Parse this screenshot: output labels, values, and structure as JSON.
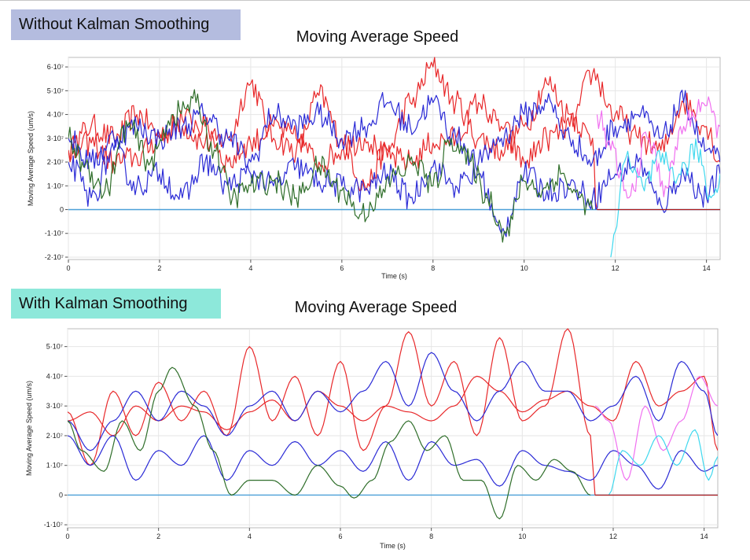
{
  "banners": {
    "top": "Without Kalman Smoothing",
    "bottom": "With Kalman Smoothing"
  },
  "colors": {
    "red": "#e8282a",
    "blue": "#2b2bd6",
    "green": "#2f6e2a",
    "magenta": "#f070f0",
    "cyan": "#3fd8ee",
    "darkred": "#b01818",
    "zero_line": "#4aa0d8",
    "grid": "#e6e6e6",
    "frame": "#bbbbbb"
  },
  "chart_data": [
    {
      "type": "line",
      "title": "Moving Average Speed",
      "xlabel": "Time (s)",
      "ylabel": "Moving Average Speed (um/s)",
      "xlim": [
        0,
        14.3
      ],
      "ylim": [
        -2.1,
        6.4
      ],
      "x_ticks": [
        0,
        2,
        4,
        6,
        8,
        10,
        12,
        14
      ],
      "x_tick_labels": [
        "0",
        "2",
        "4",
        "6",
        "8",
        "10",
        "12",
        "14"
      ],
      "y_ticks": [
        -2,
        -1,
        0,
        1,
        2,
        3,
        4,
        5,
        6
      ],
      "y_tick_labels": [
        "-2·10⁷",
        "-1·10⁷",
        "0",
        "1·10⁷",
        "2·10⁷",
        "3·10⁷",
        "4·10⁷",
        "5·10⁷",
        "6·10⁷"
      ],
      "y_unit": "×10^7 um/s",
      "grid": true,
      "noisy": true,
      "series": [
        {
          "color": "red",
          "x": [
            0,
            0.5,
            1.0,
            1.5,
            2.0,
            2.5,
            3.0,
            3.5,
            4.0,
            4.5,
            5.0,
            5.5,
            6.0,
            6.5,
            7.0,
            7.5,
            8.0,
            8.5,
            9.0,
            9.5,
            10.0,
            10.5,
            11.0,
            11.5,
            11.6
          ],
          "values": [
            2.5,
            3.5,
            3.0,
            4.0,
            3.2,
            3.5,
            2.8,
            3.0,
            5.3,
            3.0,
            2.5,
            4.8,
            3.0,
            1.0,
            2.5,
            4.5,
            6.0,
            4.5,
            3.0,
            2.5,
            3.5,
            5.3,
            4.0,
            3.0,
            0
          ]
        },
        {
          "color": "red",
          "x": [
            0,
            0.5,
            1.0,
            1.5,
            2.0,
            2.5,
            3.0,
            3.5,
            4.0,
            4.5,
            5.0,
            5.5,
            6.0,
            6.5,
            7.0,
            7.5,
            8.0,
            8.5,
            9.0,
            9.5,
            10.0,
            10.5,
            11.0,
            11.5,
            12.0,
            12.5,
            13.0,
            13.5,
            14.0,
            14.3
          ],
          "values": [
            2.5,
            2.8,
            2.0,
            2.2,
            3.0,
            3.8,
            3.5,
            2.0,
            2.8,
            3.5,
            3.0,
            2.0,
            2.5,
            3.0,
            2.2,
            2.0,
            2.8,
            3.0,
            4.5,
            3.5,
            2.0,
            3.0,
            3.5,
            5.7,
            4.0,
            3.0,
            2.5,
            4.5,
            3.5,
            2.0
          ]
        },
        {
          "color": "blue",
          "x": [
            0,
            0.5,
            1.0,
            1.5,
            2.0,
            2.5,
            3.0,
            3.5,
            4.0,
            4.5,
            5.0,
            5.5,
            6.0,
            6.5,
            7.0,
            7.5,
            8.0,
            8.5,
            9.0,
            9.5,
            10.0,
            10.5,
            11.0,
            11.5,
            12.0,
            12.5,
            13.0,
            13.5,
            14.0,
            14.3
          ],
          "values": [
            3.0,
            2.0,
            3.0,
            3.5,
            3.0,
            3.5,
            4.0,
            3.0,
            2.0,
            4.0,
            3.5,
            4.0,
            3.0,
            3.5,
            4.5,
            3.5,
            4.5,
            3.0,
            2.0,
            3.0,
            4.0,
            4.5,
            3.0,
            2.0,
            3.5,
            4.0,
            3.0,
            4.5,
            2.5,
            2.0
          ]
        },
        {
          "color": "blue",
          "x": [
            0,
            0.5,
            1.0,
            1.5,
            2.0,
            2.5,
            3.0,
            3.5,
            4.0,
            4.5,
            5.0,
            5.5,
            6.0,
            6.5,
            7.0,
            7.5,
            8.0,
            8.5,
            9.0,
            9.5,
            10.0,
            10.5,
            11.0,
            11.5,
            12.0,
            12.5,
            13.0,
            13.5,
            14.0,
            14.3
          ],
          "values": [
            2.0,
            0.5,
            2.5,
            1.0,
            1.5,
            0.5,
            2.0,
            1.0,
            1.5,
            1.0,
            1.8,
            1.2,
            1.0,
            0.8,
            1.5,
            0.5,
            1.8,
            1.0,
            1.5,
            -1.0,
            1.5,
            0.8,
            1.0,
            0.5,
            1.5,
            2.0,
            0.2,
            1.5,
            0.5,
            1.5
          ]
        },
        {
          "color": "green",
          "x": [
            0,
            0.3,
            0.8,
            1.3,
            1.8,
            2.3,
            2.8,
            3.2,
            3.6,
            4.0,
            4.5,
            5.0,
            5.5,
            6.0,
            6.4,
            6.8,
            7.2,
            7.6,
            8.0,
            8.4,
            8.8,
            9.2,
            9.6,
            10.0,
            10.4,
            10.8,
            11.2,
            11.5
          ],
          "values": [
            3.0,
            2.0,
            0.8,
            3.5,
            2.0,
            4.0,
            4.5,
            2.5,
            0.5,
            1.0,
            1.2,
            0.5,
            1.8,
            0.8,
            -0.2,
            0.5,
            1.5,
            2.0,
            1.0,
            3.0,
            2.0,
            0.5,
            -1.0,
            1.2,
            0.8,
            1.5,
            0.5,
            0
          ]
        },
        {
          "color": "magenta",
          "x": [
            11.6,
            11.9,
            12.3,
            12.7,
            13.1,
            13.5,
            13.9,
            14.3
          ],
          "values": [
            4.0,
            2.5,
            0.5,
            3.0,
            1.0,
            3.5,
            4.5,
            3.5
          ]
        },
        {
          "color": "cyan",
          "x": [
            11.9,
            12.2,
            12.6,
            13.0,
            13.4,
            13.8,
            14.1,
            14.3
          ],
          "values": [
            -2.0,
            2.0,
            1.0,
            2.0,
            1.5,
            2.5,
            0.5,
            1.5
          ]
        },
        {
          "color": "darkred",
          "x": [
            11.6,
            14.3
          ],
          "values": [
            0,
            0
          ]
        }
      ]
    },
    {
      "type": "line",
      "title": "Moving Average Speed",
      "xlabel": "Time (s)",
      "ylabel": "Moving Average Speed (um/s)",
      "xlim": [
        0,
        14.3
      ],
      "ylim": [
        -1.1,
        5.6
      ],
      "x_ticks": [
        0,
        2,
        4,
        6,
        8,
        10,
        12,
        14
      ],
      "x_tick_labels": [
        "0",
        "2",
        "4",
        "6",
        "8",
        "10",
        "12",
        "14"
      ],
      "y_ticks": [
        -1,
        0,
        1,
        2,
        3,
        4,
        5
      ],
      "y_tick_labels": [
        "-1·10⁷",
        "0",
        "1·10⁷",
        "2·10⁷",
        "3·10⁷",
        "4·10⁷",
        "5·10⁷"
      ],
      "y_unit": "×10^7 um/s",
      "grid": true,
      "noisy": false,
      "series": [
        {
          "color": "red",
          "x": [
            0,
            0.5,
            1.0,
            1.5,
            2.0,
            2.5,
            3.0,
            3.5,
            4.0,
            4.5,
            5.0,
            5.5,
            6.0,
            6.5,
            7.0,
            7.5,
            8.0,
            8.5,
            9.0,
            9.5,
            10.0,
            10.5,
            11.0,
            11.5,
            11.6
          ],
          "values": [
            2.8,
            1.0,
            3.5,
            2.0,
            3.8,
            2.5,
            3.5,
            2.0,
            5.0,
            2.5,
            4.0,
            2.0,
            4.5,
            1.5,
            3.0,
            5.5,
            3.0,
            4.5,
            2.0,
            5.3,
            2.5,
            3.0,
            5.6,
            2.0,
            0
          ]
        },
        {
          "color": "red",
          "x": [
            0,
            0.5,
            1.0,
            1.5,
            2.0,
            2.5,
            3.0,
            3.5,
            4.0,
            4.5,
            5.0,
            5.5,
            6.0,
            6.5,
            7.0,
            7.5,
            8.0,
            8.5,
            9.0,
            9.5,
            10.0,
            10.5,
            11.0,
            11.5,
            12.0,
            12.5,
            13.0,
            13.5,
            14.0,
            14.3
          ],
          "values": [
            2.5,
            2.8,
            2.0,
            3.0,
            2.5,
            3.0,
            2.8,
            2.2,
            2.8,
            3.2,
            2.5,
            3.5,
            3.0,
            2.5,
            3.0,
            2.8,
            2.5,
            3.0,
            4.0,
            3.5,
            2.8,
            3.2,
            3.5,
            3.0,
            2.5,
            4.5,
            3.0,
            3.5,
            4.0,
            1.5
          ]
        },
        {
          "color": "blue",
          "x": [
            0,
            0.5,
            1.0,
            1.5,
            2.0,
            2.5,
            3.0,
            3.5,
            4.0,
            4.5,
            5.0,
            5.5,
            6.0,
            6.5,
            7.0,
            7.5,
            8.0,
            8.5,
            9.0,
            9.5,
            10.0,
            10.5,
            11.0,
            11.5,
            12.0,
            12.5,
            13.0,
            13.5,
            14.0,
            14.3
          ],
          "values": [
            2.5,
            1.5,
            2.5,
            3.5,
            2.5,
            3.5,
            3.0,
            2.0,
            3.0,
            3.5,
            2.5,
            3.5,
            2.8,
            3.5,
            4.5,
            3.0,
            4.8,
            3.5,
            2.5,
            3.5,
            4.5,
            3.5,
            3.5,
            2.5,
            3.0,
            4.0,
            2.5,
            4.5,
            3.5,
            2.0
          ]
        },
        {
          "color": "blue",
          "x": [
            0,
            0.5,
            1.0,
            1.5,
            2.0,
            2.5,
            3.0,
            3.5,
            4.0,
            4.5,
            5.0,
            5.5,
            6.0,
            6.5,
            7.0,
            7.5,
            8.0,
            8.5,
            9.0,
            9.5,
            10.0,
            10.5,
            11.0,
            11.5,
            12.0,
            12.5,
            13.0,
            13.5,
            14.0,
            14.3
          ],
          "values": [
            2.0,
            1.0,
            2.0,
            0.5,
            1.5,
            1.0,
            2.0,
            0.5,
            1.5,
            1.0,
            1.8,
            1.0,
            1.5,
            0.8,
            1.8,
            0.5,
            1.8,
            1.0,
            1.2,
            0.3,
            1.5,
            1.0,
            0.8,
            0.5,
            1.5,
            1.0,
            0.2,
            1.5,
            0.8,
            1.0
          ]
        },
        {
          "color": "green",
          "x": [
            0,
            0.3,
            0.8,
            1.2,
            1.6,
            2.0,
            2.3,
            2.8,
            3.2,
            3.6,
            4.0,
            4.5,
            5.0,
            5.5,
            6.0,
            6.3,
            6.7,
            7.1,
            7.5,
            7.9,
            8.3,
            8.7,
            9.1,
            9.5,
            9.9,
            10.3,
            10.7,
            11.1,
            11.5
          ],
          "values": [
            2.5,
            1.5,
            0.8,
            2.5,
            1.5,
            3.5,
            4.3,
            3.0,
            1.5,
            0,
            0.5,
            0.5,
            0,
            1.0,
            0.3,
            -0.1,
            0.5,
            1.8,
            2.5,
            1.5,
            2.0,
            0.5,
            0.5,
            -0.8,
            1.0,
            0.5,
            1.2,
            0.8,
            0
          ]
        },
        {
          "color": "magenta",
          "x": [
            11.6,
            11.9,
            12.3,
            12.7,
            13.1,
            13.5,
            13.9,
            14.3
          ],
          "values": [
            3.0,
            2.5,
            0.5,
            3.0,
            1.5,
            2.5,
            4.0,
            3.0
          ]
        },
        {
          "color": "cyan",
          "x": [
            11.9,
            12.2,
            12.6,
            13.0,
            13.4,
            13.8,
            14.1,
            14.3
          ],
          "values": [
            0,
            1.5,
            1.0,
            2.0,
            1.0,
            2.2,
            0.5,
            1.3
          ]
        },
        {
          "color": "darkred",
          "x": [
            11.6,
            14.3
          ],
          "values": [
            0,
            0
          ]
        }
      ]
    }
  ]
}
